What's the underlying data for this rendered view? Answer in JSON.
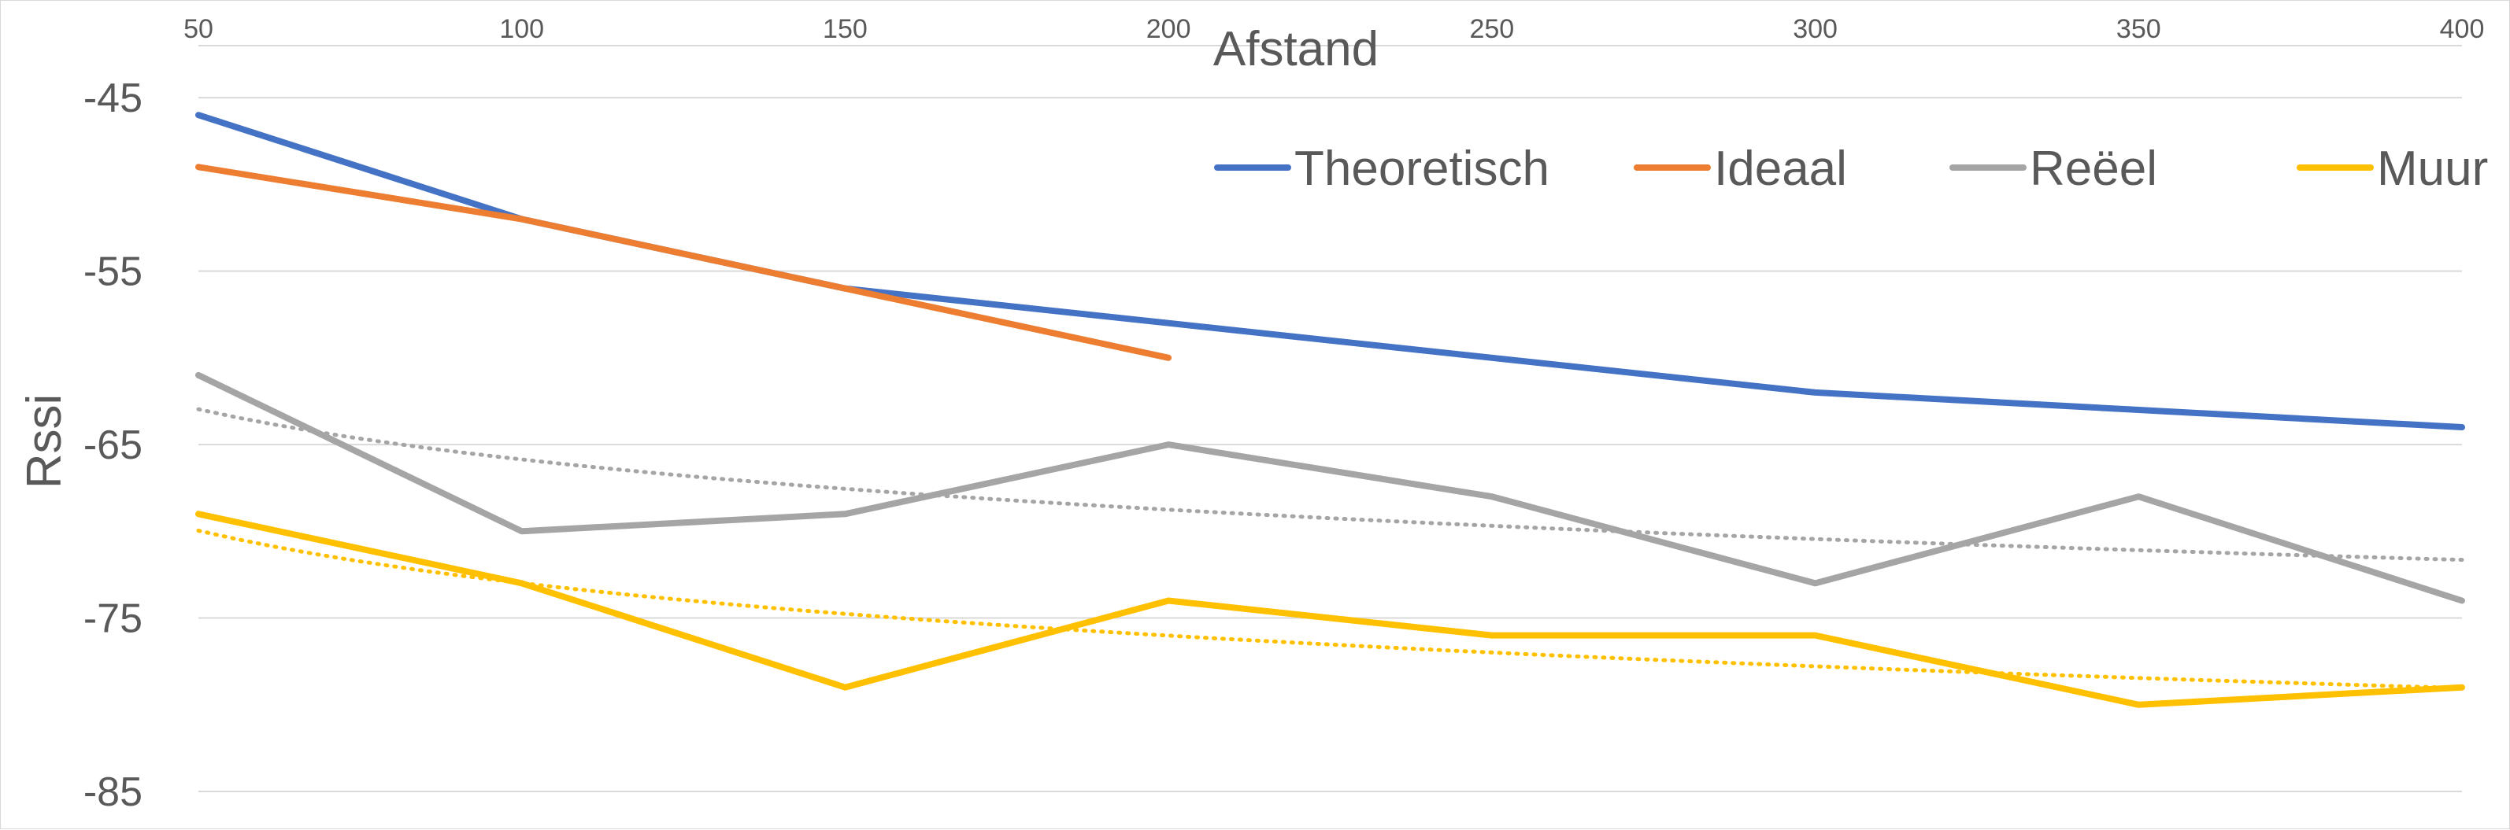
{
  "chart_data": {
    "type": "line",
    "title": "",
    "xlabel": "Afstand",
    "ylabel": "Rssi",
    "x": [
      50,
      100,
      150,
      200,
      250,
      300,
      350,
      400
    ],
    "x_tick_labels": [
      "50",
      "100",
      "150",
      "200",
      "250",
      "300",
      "350",
      "400"
    ],
    "x_axis_position": "top",
    "xlim": [
      50,
      400
    ],
    "ylim": [
      -85,
      -42
    ],
    "y_tick_values": [
      -45,
      -55,
      -65,
      -75,
      -85
    ],
    "y_tick_labels": [
      "-45",
      "-55",
      "-65",
      "-75",
      "-85"
    ],
    "grid": true,
    "legend_position": "top-right",
    "series": [
      {
        "name": "Theoretisch",
        "color": "#4472C4",
        "values": [
          -46,
          -52,
          -56,
          -58,
          -60,
          -62,
          -63,
          -64
        ]
      },
      {
        "name": "Ideaal",
        "color": "#ED7D31",
        "values": [
          -49,
          -52,
          -56,
          -60,
          null,
          null,
          null,
          null
        ]
      },
      {
        "name": "Reëel",
        "color": "#A5A5A5",
        "values": [
          -61,
          -70,
          -69,
          -65,
          -68,
          -73,
          -68,
          -74
        ]
      },
      {
        "name": "Muur",
        "color": "#FFC000",
        "values": [
          -69,
          -73,
          -79,
          -74,
          -76,
          -76,
          -80,
          -79
        ]
      }
    ],
    "trendlines": [
      {
        "series": "Reëel",
        "type": "logarithmic",
        "style": "dotted",
        "color": "#A5A5A5"
      },
      {
        "series": "Muur",
        "type": "logarithmic",
        "style": "dotted",
        "color": "#FFC000"
      }
    ]
  }
}
